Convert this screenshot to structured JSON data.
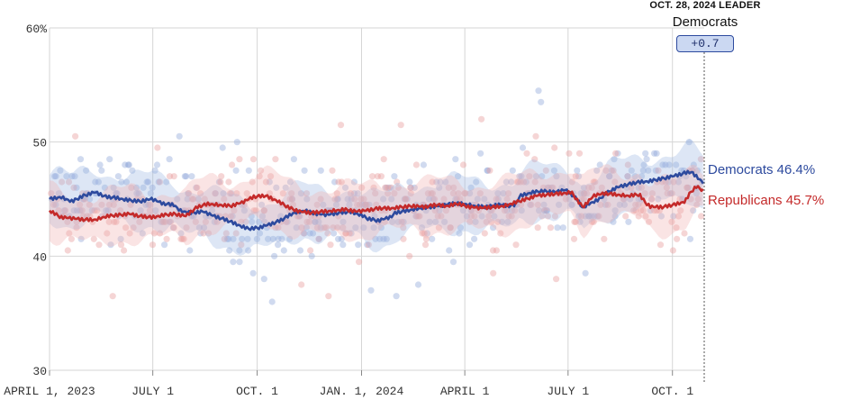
{
  "chart_data": {
    "type": "line",
    "title": "",
    "ylabel": "",
    "xlabel": "",
    "ylim": [
      30,
      60
    ],
    "yticks": [
      {
        "value": 60,
        "label": "60%"
      },
      {
        "value": 50,
        "label": "50"
      },
      {
        "value": 40,
        "label": "40"
      },
      {
        "value": 30,
        "label": "30"
      }
    ],
    "x_range_days": [
      0,
      577
    ],
    "xticks": [
      {
        "day": 0,
        "label": "APRIL 1, 2023"
      },
      {
        "day": 91,
        "label": "JULY 1"
      },
      {
        "day": 183,
        "label": "OCT. 1"
      },
      {
        "day": 275,
        "label": "JAN. 1, 2024"
      },
      {
        "day": 366,
        "label": "APRIL 1"
      },
      {
        "day": 457,
        "label": "JULY 1"
      },
      {
        "day": 549,
        "label": "OCT. 1"
      }
    ],
    "leader": {
      "date": "OCT. 28, 2024 LEADER",
      "party": "Democrats",
      "margin": "+0.7",
      "marker_day": 577
    },
    "series": [
      {
        "name": "Democrats",
        "label": "Democrats 46.4%",
        "final": 46.4,
        "color": "#2d4a9e",
        "band_color": "#9fb6e3",
        "dot_color": "#8fa6d8",
        "points": [
          [
            0,
            45.0
          ],
          [
            10,
            45.2
          ],
          [
            20,
            44.8
          ],
          [
            30,
            45.3
          ],
          [
            40,
            45.6
          ],
          [
            50,
            45.2
          ],
          [
            60,
            45.1
          ],
          [
            70,
            44.9
          ],
          [
            80,
            44.8
          ],
          [
            90,
            45.0
          ],
          [
            100,
            44.6
          ],
          [
            110,
            44.5
          ],
          [
            115,
            44.0
          ],
          [
            125,
            43.8
          ],
          [
            135,
            43.9
          ],
          [
            145,
            43.5
          ],
          [
            155,
            43.2
          ],
          [
            165,
            42.8
          ],
          [
            175,
            42.4
          ],
          [
            185,
            42.5
          ],
          [
            195,
            42.8
          ],
          [
            205,
            43.2
          ],
          [
            215,
            43.8
          ],
          [
            225,
            44.0
          ],
          [
            235,
            43.7
          ],
          [
            245,
            43.6
          ],
          [
            255,
            43.8
          ],
          [
            265,
            43.9
          ],
          [
            275,
            43.6
          ],
          [
            280,
            43.3
          ],
          [
            290,
            43.1
          ],
          [
            300,
            43.4
          ],
          [
            305,
            43.8
          ],
          [
            315,
            44.0
          ],
          [
            325,
            44.2
          ],
          [
            335,
            44.3
          ],
          [
            345,
            44.4
          ],
          [
            355,
            44.6
          ],
          [
            365,
            44.6
          ],
          [
            375,
            44.4
          ],
          [
            385,
            44.3
          ],
          [
            395,
            44.5
          ],
          [
            405,
            44.4
          ],
          [
            410,
            44.5
          ],
          [
            415,
            45.3
          ],
          [
            425,
            45.6
          ],
          [
            435,
            45.7
          ],
          [
            445,
            45.6
          ],
          [
            455,
            45.8
          ],
          [
            460,
            45.4
          ],
          [
            465,
            45.0
          ],
          [
            470,
            44.2
          ],
          [
            475,
            44.6
          ],
          [
            480,
            44.8
          ],
          [
            485,
            45.0
          ],
          [
            490,
            45.5
          ],
          [
            500,
            46.0
          ],
          [
            510,
            46.3
          ],
          [
            520,
            46.5
          ],
          [
            530,
            46.6
          ],
          [
            540,
            46.8
          ],
          [
            550,
            47.0
          ],
          [
            560,
            47.3
          ],
          [
            565,
            47.4
          ],
          [
            570,
            47.0
          ],
          [
            577,
            46.4
          ]
        ]
      },
      {
        "name": "Republicans",
        "label": "Republicans 45.7%",
        "final": 45.7,
        "color": "#c42a2a",
        "band_color": "#f2b3b3",
        "dot_color": "#e89a9a",
        "points": [
          [
            0,
            44.0
          ],
          [
            10,
            43.4
          ],
          [
            20,
            43.3
          ],
          [
            30,
            43.2
          ],
          [
            40,
            43.2
          ],
          [
            50,
            43.5
          ],
          [
            60,
            43.6
          ],
          [
            70,
            43.7
          ],
          [
            80,
            43.5
          ],
          [
            90,
            43.4
          ],
          [
            100,
            43.6
          ],
          [
            110,
            43.7
          ],
          [
            120,
            43.5
          ],
          [
            130,
            44.3
          ],
          [
            140,
            44.6
          ],
          [
            150,
            44.5
          ],
          [
            160,
            44.4
          ],
          [
            170,
            44.7
          ],
          [
            180,
            45.2
          ],
          [
            190,
            45.3
          ],
          [
            200,
            44.9
          ],
          [
            210,
            44.3
          ],
          [
            220,
            43.9
          ],
          [
            230,
            43.8
          ],
          [
            240,
            43.9
          ],
          [
            250,
            44.0
          ],
          [
            260,
            44.1
          ],
          [
            270,
            43.9
          ],
          [
            280,
            44.0
          ],
          [
            290,
            44.2
          ],
          [
            300,
            44.2
          ],
          [
            310,
            44.3
          ],
          [
            320,
            44.4
          ],
          [
            330,
            44.3
          ],
          [
            340,
            44.5
          ],
          [
            350,
            44.4
          ],
          [
            360,
            44.6
          ],
          [
            370,
            44.3
          ],
          [
            380,
            44.2
          ],
          [
            390,
            44.3
          ],
          [
            400,
            44.4
          ],
          [
            410,
            44.7
          ],
          [
            420,
            45.0
          ],
          [
            430,
            45.3
          ],
          [
            440,
            45.4
          ],
          [
            450,
            45.5
          ],
          [
            460,
            45.6
          ],
          [
            465,
            44.9
          ],
          [
            470,
            44.3
          ],
          [
            480,
            45.3
          ],
          [
            490,
            45.5
          ],
          [
            500,
            45.4
          ],
          [
            510,
            45.3
          ],
          [
            520,
            45.4
          ],
          [
            525,
            44.7
          ],
          [
            530,
            44.3
          ],
          [
            540,
            44.3
          ],
          [
            550,
            44.5
          ],
          [
            560,
            44.8
          ],
          [
            565,
            45.6
          ],
          [
            570,
            46.1
          ],
          [
            577,
            45.7
          ]
        ]
      }
    ]
  }
}
